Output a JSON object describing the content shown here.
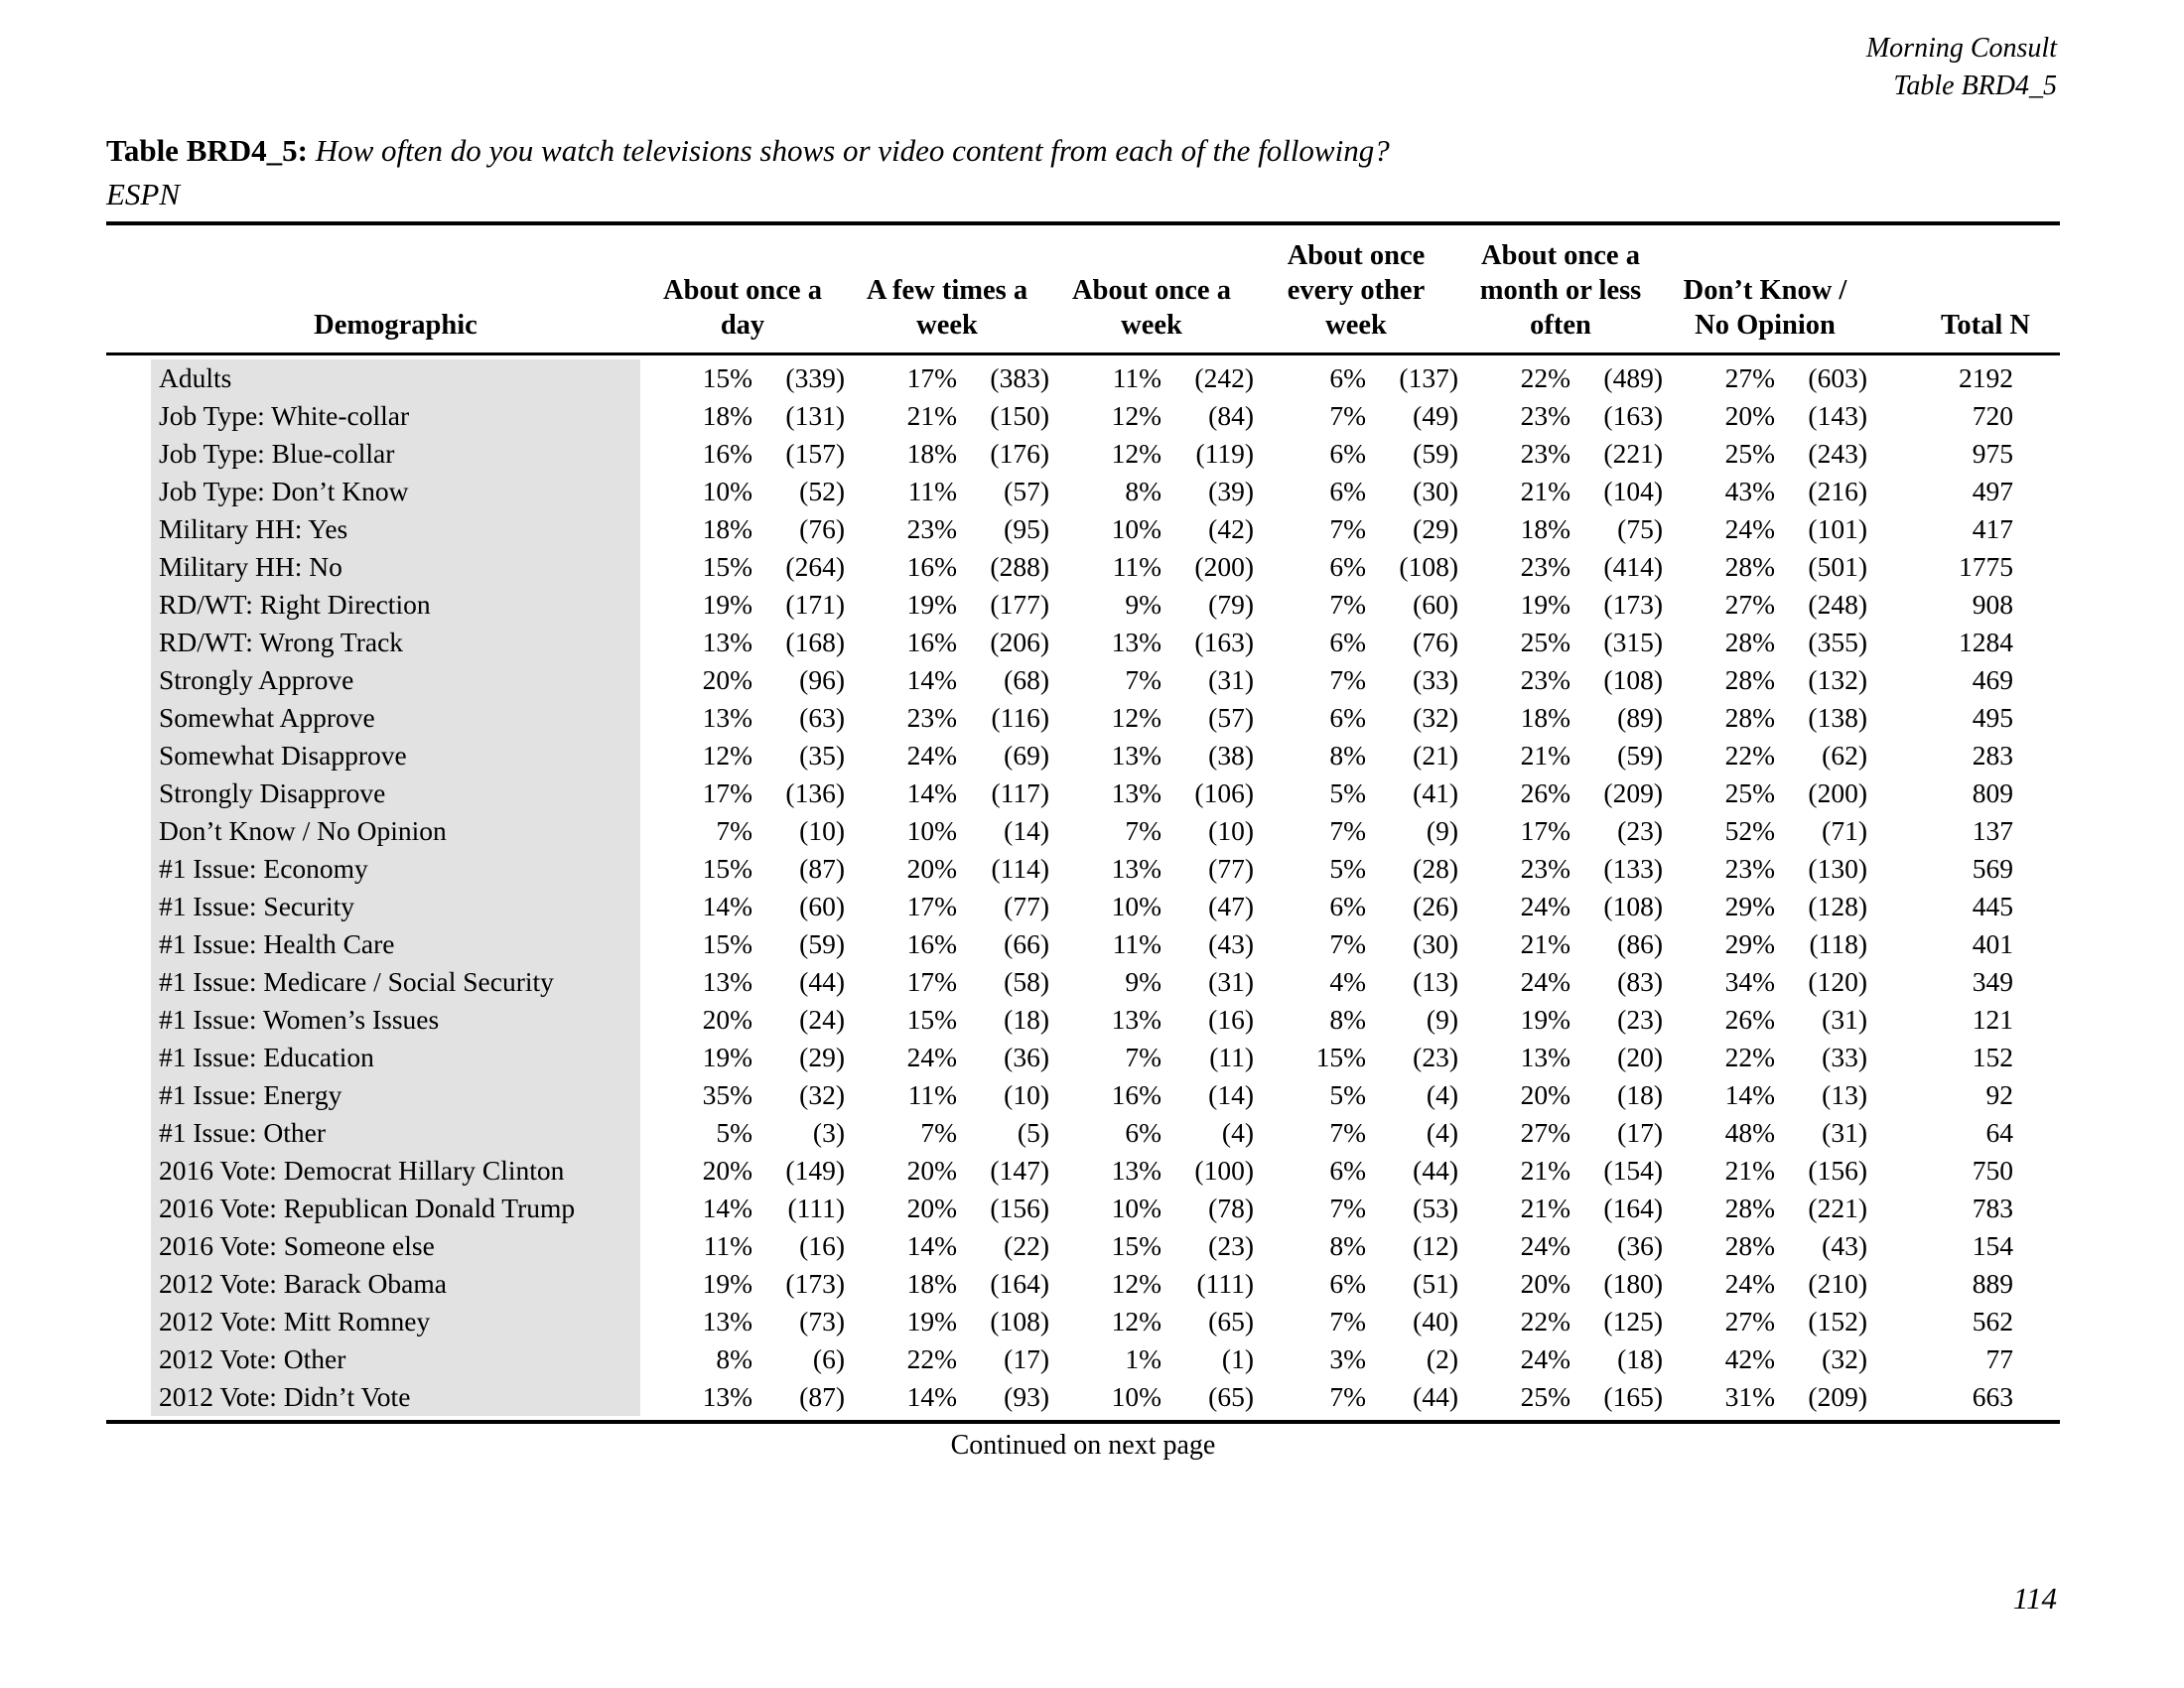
{
  "page_header": {
    "brand": "Morning Consult",
    "table_ref": "Table BRD4_5"
  },
  "title": {
    "label": "Table BRD4_5:",
    "question": "How often do you watch televisions shows or video content from each of the following?",
    "subject": "ESPN"
  },
  "table": {
    "columns": [
      {
        "id": "demographic",
        "label": "Demographic",
        "lines": [
          "Demographic"
        ]
      },
      {
        "id": "once-a-day",
        "label": "About once a day",
        "lines": [
          "About once a",
          "day"
        ]
      },
      {
        "id": "few-times-week",
        "label": "A few times a week",
        "lines": [
          "A few times a",
          "week"
        ]
      },
      {
        "id": "once-a-week",
        "label": "About once a week",
        "lines": [
          "About once a",
          "week"
        ]
      },
      {
        "id": "every-other-week",
        "label": "About once every other week",
        "lines": [
          "About once",
          "every other",
          "week"
        ]
      },
      {
        "id": "month-or-less",
        "label": "About once a month or less often",
        "lines": [
          "About once a",
          "month or less",
          "often"
        ]
      },
      {
        "id": "dont-know",
        "label": "Don’t Know / No Opinion",
        "lines": [
          "Don’t Know /",
          "No Opinion"
        ]
      },
      {
        "id": "total-n",
        "label": "Total N",
        "lines": [
          "Total N"
        ]
      }
    ],
    "rows": [
      {
        "label": "Adults",
        "cells": [
          "15%",
          "(339)",
          "17%",
          "(383)",
          "11%",
          "(242)",
          "6%",
          "(137)",
          "22%",
          "(489)",
          "27%",
          "(603)",
          "2192"
        ]
      },
      {
        "label": "Job Type: White-collar",
        "cells": [
          "18%",
          "(131)",
          "21%",
          "(150)",
          "12%",
          "(84)",
          "7%",
          "(49)",
          "23%",
          "(163)",
          "20%",
          "(143)",
          "720"
        ]
      },
      {
        "label": "Job Type: Blue-collar",
        "cells": [
          "16%",
          "(157)",
          "18%",
          "(176)",
          "12%",
          "(119)",
          "6%",
          "(59)",
          "23%",
          "(221)",
          "25%",
          "(243)",
          "975"
        ]
      },
      {
        "label": "Job Type: Don’t Know",
        "cells": [
          "10%",
          "(52)",
          "11%",
          "(57)",
          "8%",
          "(39)",
          "6%",
          "(30)",
          "21%",
          "(104)",
          "43%",
          "(216)",
          "497"
        ]
      },
      {
        "label": "Military HH: Yes",
        "cells": [
          "18%",
          "(76)",
          "23%",
          "(95)",
          "10%",
          "(42)",
          "7%",
          "(29)",
          "18%",
          "(75)",
          "24%",
          "(101)",
          "417"
        ]
      },
      {
        "label": "Military HH: No",
        "cells": [
          "15%",
          "(264)",
          "16%",
          "(288)",
          "11%",
          "(200)",
          "6%",
          "(108)",
          "23%",
          "(414)",
          "28%",
          "(501)",
          "1775"
        ]
      },
      {
        "label": "RD/WT: Right Direction",
        "cells": [
          "19%",
          "(171)",
          "19%",
          "(177)",
          "9%",
          "(79)",
          "7%",
          "(60)",
          "19%",
          "(173)",
          "27%",
          "(248)",
          "908"
        ]
      },
      {
        "label": "RD/WT: Wrong Track",
        "cells": [
          "13%",
          "(168)",
          "16%",
          "(206)",
          "13%",
          "(163)",
          "6%",
          "(76)",
          "25%",
          "(315)",
          "28%",
          "(355)",
          "1284"
        ]
      },
      {
        "label": "Strongly Approve",
        "cells": [
          "20%",
          "(96)",
          "14%",
          "(68)",
          "7%",
          "(31)",
          "7%",
          "(33)",
          "23%",
          "(108)",
          "28%",
          "(132)",
          "469"
        ]
      },
      {
        "label": "Somewhat Approve",
        "cells": [
          "13%",
          "(63)",
          "23%",
          "(116)",
          "12%",
          "(57)",
          "6%",
          "(32)",
          "18%",
          "(89)",
          "28%",
          "(138)",
          "495"
        ]
      },
      {
        "label": "Somewhat Disapprove",
        "cells": [
          "12%",
          "(35)",
          "24%",
          "(69)",
          "13%",
          "(38)",
          "8%",
          "(21)",
          "21%",
          "(59)",
          "22%",
          "(62)",
          "283"
        ]
      },
      {
        "label": "Strongly Disapprove",
        "cells": [
          "17%",
          "(136)",
          "14%",
          "(117)",
          "13%",
          "(106)",
          "5%",
          "(41)",
          "26%",
          "(209)",
          "25%",
          "(200)",
          "809"
        ]
      },
      {
        "label": "Don’t Know / No Opinion",
        "cells": [
          "7%",
          "(10)",
          "10%",
          "(14)",
          "7%",
          "(10)",
          "7%",
          "(9)",
          "17%",
          "(23)",
          "52%",
          "(71)",
          "137"
        ]
      },
      {
        "label": "#1 Issue: Economy",
        "cells": [
          "15%",
          "(87)",
          "20%",
          "(114)",
          "13%",
          "(77)",
          "5%",
          "(28)",
          "23%",
          "(133)",
          "23%",
          "(130)",
          "569"
        ]
      },
      {
        "label": "#1 Issue: Security",
        "cells": [
          "14%",
          "(60)",
          "17%",
          "(77)",
          "10%",
          "(47)",
          "6%",
          "(26)",
          "24%",
          "(108)",
          "29%",
          "(128)",
          "445"
        ]
      },
      {
        "label": "#1 Issue: Health Care",
        "cells": [
          "15%",
          "(59)",
          "16%",
          "(66)",
          "11%",
          "(43)",
          "7%",
          "(30)",
          "21%",
          "(86)",
          "29%",
          "(118)",
          "401"
        ]
      },
      {
        "label": "#1 Issue: Medicare / Social Security",
        "cells": [
          "13%",
          "(44)",
          "17%",
          "(58)",
          "9%",
          "(31)",
          "4%",
          "(13)",
          "24%",
          "(83)",
          "34%",
          "(120)",
          "349"
        ]
      },
      {
        "label": "#1 Issue: Women’s Issues",
        "cells": [
          "20%",
          "(24)",
          "15%",
          "(18)",
          "13%",
          "(16)",
          "8%",
          "(9)",
          "19%",
          "(23)",
          "26%",
          "(31)",
          "121"
        ]
      },
      {
        "label": "#1 Issue: Education",
        "cells": [
          "19%",
          "(29)",
          "24%",
          "(36)",
          "7%",
          "(11)",
          "15%",
          "(23)",
          "13%",
          "(20)",
          "22%",
          "(33)",
          "152"
        ]
      },
      {
        "label": "#1 Issue: Energy",
        "cells": [
          "35%",
          "(32)",
          "11%",
          "(10)",
          "16%",
          "(14)",
          "5%",
          "(4)",
          "20%",
          "(18)",
          "14%",
          "(13)",
          "92"
        ]
      },
      {
        "label": "#1 Issue: Other",
        "cells": [
          "5%",
          "(3)",
          "7%",
          "(5)",
          "6%",
          "(4)",
          "7%",
          "(4)",
          "27%",
          "(17)",
          "48%",
          "(31)",
          "64"
        ]
      },
      {
        "label": "2016 Vote: Democrat Hillary Clinton",
        "cells": [
          "20%",
          "(149)",
          "20%",
          "(147)",
          "13%",
          "(100)",
          "6%",
          "(44)",
          "21%",
          "(154)",
          "21%",
          "(156)",
          "750"
        ]
      },
      {
        "label": "2016 Vote: Republican Donald Trump",
        "cells": [
          "14%",
          "(111)",
          "20%",
          "(156)",
          "10%",
          "(78)",
          "7%",
          "(53)",
          "21%",
          "(164)",
          "28%",
          "(221)",
          "783"
        ]
      },
      {
        "label": "2016 Vote: Someone else",
        "cells": [
          "11%",
          "(16)",
          "14%",
          "(22)",
          "15%",
          "(23)",
          "8%",
          "(12)",
          "24%",
          "(36)",
          "28%",
          "(43)",
          "154"
        ]
      },
      {
        "label": "2012 Vote: Barack Obama",
        "cells": [
          "19%",
          "(173)",
          "18%",
          "(164)",
          "12%",
          "(111)",
          "6%",
          "(51)",
          "20%",
          "(180)",
          "24%",
          "(210)",
          "889"
        ]
      },
      {
        "label": "2012 Vote: Mitt Romney",
        "cells": [
          "13%",
          "(73)",
          "19%",
          "(108)",
          "12%",
          "(65)",
          "7%",
          "(40)",
          "22%",
          "(125)",
          "27%",
          "(152)",
          "562"
        ]
      },
      {
        "label": "2012 Vote: Other",
        "cells": [
          "8%",
          "(6)",
          "22%",
          "(17)",
          "1%",
          "(1)",
          "3%",
          "(2)",
          "24%",
          "(18)",
          "42%",
          "(32)",
          "77"
        ]
      },
      {
        "label": "2012 Vote: Didn’t Vote",
        "cells": [
          "13%",
          "(87)",
          "14%",
          "(93)",
          "10%",
          "(65)",
          "7%",
          "(44)",
          "25%",
          "(165)",
          "31%",
          "(209)",
          "663"
        ]
      }
    ]
  },
  "footer": {
    "continued": "Continued on next page",
    "page_number": "114"
  },
  "colors": {
    "row_shade": "#e2e2e2",
    "rule": "#000000",
    "text": "#000000"
  }
}
